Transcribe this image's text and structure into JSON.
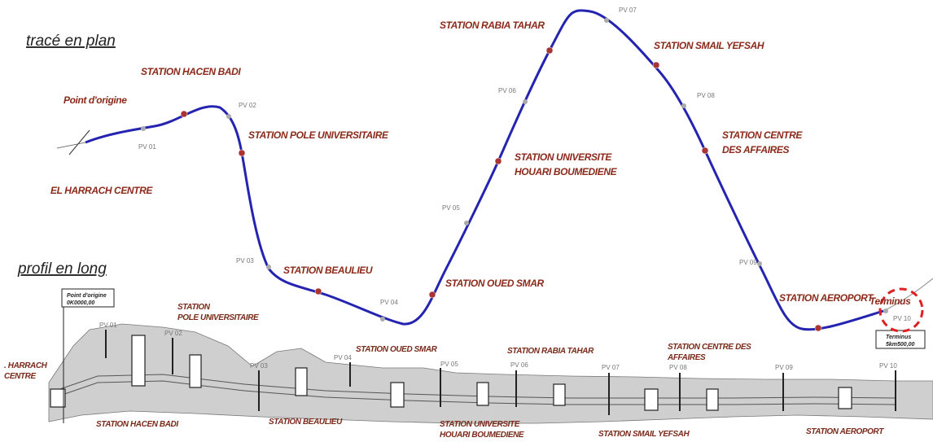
{
  "headings": {
    "plan": "tracé en plan",
    "profile": "profil en long"
  },
  "plan": {
    "origin": "Point d'origine",
    "stations": [
      [
        "STATION HACEN BADI"
      ],
      [
        "STATION POLE UNIVERSITAIRE"
      ],
      [
        "EL HARRACH CENTRE"
      ],
      [
        "STATION BEAULIEU"
      ],
      [
        "STATION OUED SMAR"
      ],
      [
        "STATION UNIVERSITE",
        "HOUARI BOUMEDIENE"
      ],
      [
        "STATION RABIA TAHAR"
      ],
      [
        "STATION SMAIL YEFSAH"
      ],
      [
        "STATION CENTRE",
        "DES AFFAIRES"
      ],
      [
        "STATION AEROPORT"
      ]
    ],
    "terminus": "Terminus",
    "pv": [
      "PV 01",
      "PV 02",
      "PV 03",
      "PV 04",
      "PV 05",
      "PV 06",
      "PV 07",
      "PV 08",
      "PV 09",
      "PV 10"
    ]
  },
  "profile": {
    "origin_box": [
      "Point d'origine",
      "0K0000,00"
    ],
    "terminus_box": [
      "Terminus",
      "5km500,00"
    ],
    "stations": [
      [
        "STATION",
        "POLE UNIVERSITAIRE"
      ],
      [
        ". HARRACH",
        "CENTRE"
      ],
      [
        "STATION HACEN BADI"
      ],
      [
        "STATION OUED SMAR"
      ],
      [
        "STATION RABIA TAHAR"
      ],
      [
        "STATION CENTRE DES",
        "AFFAIRES"
      ],
      [
        "STATION BEAULIEU"
      ],
      [
        "STATION UNIVERSITE",
        "HOUARI BOUMEDIENE"
      ],
      [
        "STATION SMAIL YEFSAH"
      ],
      [
        "STATION AEROPORT"
      ]
    ],
    "pv": [
      "PV 01",
      "PV 02",
      "PV 03",
      "PV 04",
      "PV 05",
      "PV 06",
      "PV 07",
      "PV 08",
      "PV 09",
      "PV 10"
    ]
  }
}
